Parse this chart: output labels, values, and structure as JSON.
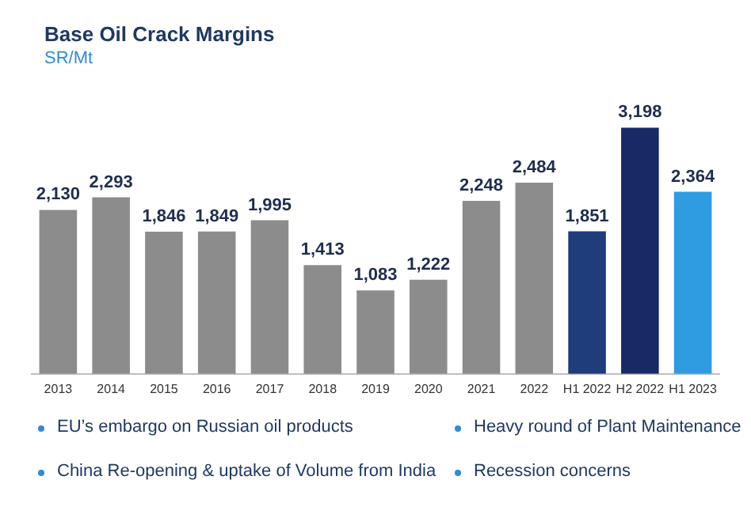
{
  "chart_data": {
    "type": "bar",
    "title": "Base Oil Crack Margins",
    "subtitle": "SR/Mt",
    "categories": [
      "2013",
      "2014",
      "2015",
      "2016",
      "2017",
      "2018",
      "2019",
      "2020",
      "2021",
      "2022",
      "H1 2022",
      "H2 2022",
      "H1 2023"
    ],
    "values": [
      2130,
      2293,
      1846,
      1849,
      1995,
      1413,
      1083,
      1222,
      2248,
      2484,
      1851,
      3198,
      2364
    ],
    "colors": [
      "#8c8c8c",
      "#8c8c8c",
      "#8c8c8c",
      "#8c8c8c",
      "#8c8c8c",
      "#8c8c8c",
      "#8c8c8c",
      "#8c8c8c",
      "#8c8c8c",
      "#8c8c8c",
      "#1f3d7a",
      "#172a66",
      "#2f9be0"
    ],
    "value_labels": [
      "2,130",
      "2,293",
      "1,846",
      "1,849",
      "1,995",
      "1,413",
      "1,083",
      "1,222",
      "2,248",
      "2,484",
      "1,851",
      "3,198",
      "2,364"
    ],
    "grid": false,
    "legend": false,
    "annotations": [
      "EU’s embargo on Russian oil products",
      "Heavy round of Plant Maintenance",
      "China Re-opening & uptake of Volume from India",
      "Recession concerns"
    ]
  }
}
